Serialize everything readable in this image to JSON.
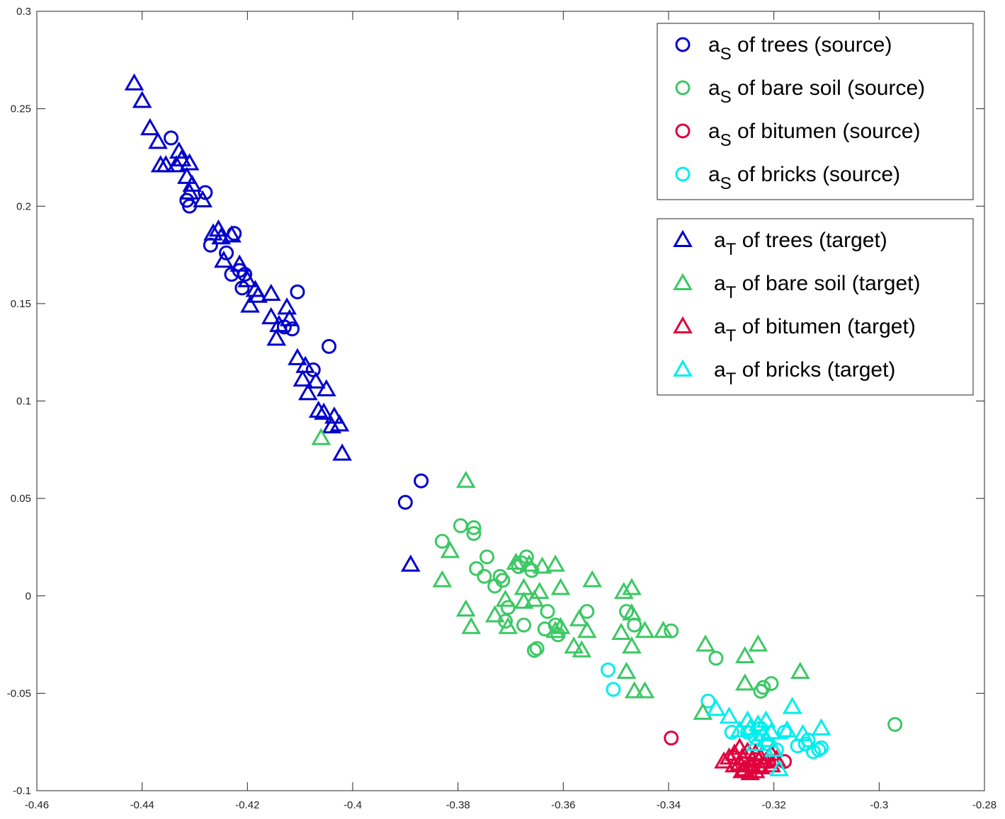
{
  "chart_data": {
    "type": "scatter",
    "title": "",
    "xlabel": "",
    "ylabel": "",
    "xlim": [
      -0.46,
      -0.28
    ],
    "ylim": [
      -0.1,
      0.3
    ],
    "xticks": [
      -0.46,
      -0.44,
      -0.42,
      -0.4,
      -0.38,
      -0.36,
      -0.34,
      -0.32,
      -0.3,
      -0.28
    ],
    "yticks": [
      -0.1,
      -0.05,
      0,
      0.05,
      0.1,
      0.15,
      0.2,
      0.25,
      0.3
    ],
    "xtick_labels": [
      "-0.46",
      "-0.44",
      "-0.42",
      "-0.4",
      "-0.38",
      "-0.36",
      "-0.34",
      "-0.32",
      "-0.3",
      "-0.28"
    ],
    "ytick_labels": [
      "-0.1",
      "-0.05",
      "0",
      "0.05",
      "0.1",
      "0.15",
      "0.2",
      "0.25",
      "0.3"
    ],
    "grid": false,
    "legends": [
      {
        "placement": "top-right",
        "entries": [
          {
            "base": "a",
            "sub": "S",
            "rest": " of trees (source)",
            "marker": "circle",
            "color": "#0000cc"
          },
          {
            "base": "a",
            "sub": "S",
            "rest": " of bare soil (source)",
            "marker": "circle",
            "color": "#3cc864"
          },
          {
            "base": "a",
            "sub": "S",
            "rest": " of bitumen (source)",
            "marker": "circle",
            "color": "#e0003c"
          },
          {
            "base": "a",
            "sub": "S",
            "rest": " of bricks (source)",
            "marker": "circle",
            "color": "#00eeee"
          }
        ]
      },
      {
        "placement": "right",
        "entries": [
          {
            "base": "a",
            "sub": "T",
            "rest": " of trees (target)",
            "marker": "triangle",
            "color": "#0000cc"
          },
          {
            "base": "a",
            "sub": "T",
            "rest": " of bare soil (target)",
            "marker": "triangle",
            "color": "#3cc864"
          },
          {
            "base": "a",
            "sub": "T",
            "rest": " of bitumen (target)",
            "marker": "triangle",
            "color": "#e0003c"
          },
          {
            "base": "a",
            "sub": "T",
            "rest": " of bricks (target)",
            "marker": "triangle",
            "color": "#00eeee"
          }
        ]
      }
    ],
    "series": [
      {
        "marker": "circle",
        "color": "#0000cc",
        "points": [
          [
            -0.4345,
            0.235
          ],
          [
            -0.428,
            0.207
          ],
          [
            -0.4315,
            0.203
          ],
          [
            -0.431,
            0.2
          ],
          [
            -0.427,
            0.18
          ],
          [
            -0.4225,
            0.186
          ],
          [
            -0.424,
            0.176
          ],
          [
            -0.4215,
            0.167
          ],
          [
            -0.421,
            0.158
          ],
          [
            -0.423,
            0.165
          ],
          [
            -0.4205,
            0.165
          ],
          [
            -0.4105,
            0.156
          ],
          [
            -0.413,
            0.138
          ],
          [
            -0.4115,
            0.137
          ],
          [
            -0.4045,
            0.128
          ],
          [
            -0.4075,
            0.116
          ],
          [
            -0.387,
            0.059
          ],
          [
            -0.39,
            0.048
          ]
        ]
      },
      {
        "marker": "circle",
        "color": "#3cc864",
        "points": [
          [
            -0.3795,
            0.036
          ],
          [
            -0.377,
            0.035
          ],
          [
            -0.377,
            0.032
          ],
          [
            -0.383,
            0.028
          ],
          [
            -0.3745,
            0.02
          ],
          [
            -0.367,
            0.02
          ],
          [
            -0.368,
            0.017
          ],
          [
            -0.3685,
            0.015
          ],
          [
            -0.366,
            0.013
          ],
          [
            -0.3765,
            0.014
          ],
          [
            -0.375,
            0.01
          ],
          [
            -0.372,
            0.01
          ],
          [
            -0.3715,
            0.008
          ],
          [
            -0.373,
            0.005
          ],
          [
            -0.3705,
            -0.006
          ],
          [
            -0.371,
            -0.013
          ],
          [
            -0.3675,
            -0.015
          ],
          [
            -0.363,
            -0.008
          ],
          [
            -0.3615,
            -0.015
          ],
          [
            -0.361,
            -0.02
          ],
          [
            -0.3635,
            -0.017
          ],
          [
            -0.365,
            -0.027
          ],
          [
            -0.3655,
            -0.028
          ],
          [
            -0.3555,
            -0.008
          ],
          [
            -0.348,
            -0.008
          ],
          [
            -0.3465,
            -0.015
          ],
          [
            -0.3395,
            -0.018
          ],
          [
            -0.331,
            -0.032
          ],
          [
            -0.322,
            -0.047
          ],
          [
            -0.3225,
            -0.049
          ],
          [
            -0.3205,
            -0.045
          ],
          [
            -0.297,
            -0.066
          ]
        ]
      },
      {
        "marker": "circle",
        "color": "#e0003c",
        "points": [
          [
            -0.3395,
            -0.073
          ],
          [
            -0.3275,
            -0.083
          ],
          [
            -0.326,
            -0.086
          ],
          [
            -0.3245,
            -0.088
          ],
          [
            -0.3225,
            -0.087
          ],
          [
            -0.321,
            -0.085
          ],
          [
            -0.3235,
            -0.084
          ],
          [
            -0.318,
            -0.085
          ]
        ]
      },
      {
        "marker": "circle",
        "color": "#00eeee",
        "points": [
          [
            -0.3515,
            -0.038
          ],
          [
            -0.3505,
            -0.048
          ],
          [
            -0.3325,
            -0.054
          ],
          [
            -0.328,
            -0.07
          ],
          [
            -0.325,
            -0.07
          ],
          [
            -0.3225,
            -0.068
          ],
          [
            -0.3235,
            -0.073
          ],
          [
            -0.321,
            -0.076
          ],
          [
            -0.3195,
            -0.079
          ],
          [
            -0.318,
            -0.07
          ],
          [
            -0.314,
            -0.076
          ],
          [
            -0.3135,
            -0.074
          ],
          [
            -0.3125,
            -0.08
          ],
          [
            -0.3115,
            -0.079
          ],
          [
            -0.311,
            -0.078
          ],
          [
            -0.3155,
            -0.077
          ]
        ]
      },
      {
        "marker": "triangle",
        "color": "#0000cc",
        "points": [
          [
            -0.4415,
            0.263
          ],
          [
            -0.44,
            0.254
          ],
          [
            -0.4385,
            0.24
          ],
          [
            -0.437,
            0.233
          ],
          [
            -0.4365,
            0.221
          ],
          [
            -0.4355,
            0.221
          ],
          [
            -0.433,
            0.228
          ],
          [
            -0.4325,
            0.224
          ],
          [
            -0.4335,
            0.221
          ],
          [
            -0.431,
            0.222
          ],
          [
            -0.4315,
            0.215
          ],
          [
            -0.4305,
            0.211
          ],
          [
            -0.431,
            0.207
          ],
          [
            -0.4285,
            0.203
          ],
          [
            -0.4255,
            0.188
          ],
          [
            -0.4265,
            0.186
          ],
          [
            -0.425,
            0.184
          ],
          [
            -0.423,
            0.185
          ],
          [
            -0.4245,
            0.172
          ],
          [
            -0.4215,
            0.17
          ],
          [
            -0.42,
            0.162
          ],
          [
            -0.4185,
            0.157
          ],
          [
            -0.418,
            0.154
          ],
          [
            -0.4195,
            0.149
          ],
          [
            -0.4155,
            0.155
          ],
          [
            -0.4155,
            0.143
          ],
          [
            -0.414,
            0.139
          ],
          [
            -0.4125,
            0.148
          ],
          [
            -0.412,
            0.142
          ],
          [
            -0.4145,
            0.132
          ],
          [
            -0.4105,
            0.122
          ],
          [
            -0.409,
            0.118
          ],
          [
            -0.4095,
            0.111
          ],
          [
            -0.407,
            0.11
          ],
          [
            -0.405,
            0.106
          ],
          [
            -0.4085,
            0.104
          ],
          [
            -0.4065,
            0.095
          ],
          [
            -0.4055,
            0.094
          ],
          [
            -0.4035,
            0.092
          ],
          [
            -0.404,
            0.087
          ],
          [
            -0.4025,
            0.088
          ],
          [
            -0.402,
            0.073
          ],
          [
            -0.389,
            0.016
          ]
        ]
      },
      {
        "marker": "triangle",
        "color": "#3cc864",
        "points": [
          [
            -0.406,
            0.081
          ],
          [
            -0.3785,
            0.059
          ],
          [
            -0.3815,
            0.023
          ],
          [
            -0.383,
            0.008
          ],
          [
            -0.369,
            0.017
          ],
          [
            -0.3665,
            0.016
          ],
          [
            -0.364,
            0.015
          ],
          [
            -0.3615,
            0.016
          ],
          [
            -0.3675,
            0.004
          ],
          [
            -0.3645,
            0.002
          ],
          [
            -0.3605,
            0.004
          ],
          [
            -0.3655,
            -0.002
          ],
          [
            -0.371,
            -0.002
          ],
          [
            -0.3785,
            -0.007
          ],
          [
            -0.3775,
            -0.016
          ],
          [
            -0.373,
            -0.01
          ],
          [
            -0.3675,
            -0.003
          ],
          [
            -0.3705,
            -0.016
          ],
          [
            -0.3605,
            -0.016
          ],
          [
            -0.3615,
            -0.018
          ],
          [
            -0.357,
            -0.012
          ],
          [
            -0.3545,
            0.008
          ],
          [
            -0.3485,
            0.002
          ],
          [
            -0.347,
            0.004
          ],
          [
            -0.347,
            -0.009
          ],
          [
            -0.3555,
            -0.018
          ],
          [
            -0.358,
            -0.026
          ],
          [
            -0.3565,
            -0.028
          ],
          [
            -0.349,
            -0.019
          ],
          [
            -0.347,
            -0.026
          ],
          [
            -0.3445,
            -0.018
          ],
          [
            -0.341,
            -0.018
          ],
          [
            -0.348,
            -0.039
          ],
          [
            -0.3465,
            -0.049
          ],
          [
            -0.3445,
            -0.049
          ],
          [
            -0.333,
            -0.025
          ],
          [
            -0.3255,
            -0.031
          ],
          [
            -0.323,
            -0.025
          ],
          [
            -0.3255,
            -0.045
          ],
          [
            -0.315,
            -0.039
          ],
          [
            -0.3335,
            -0.06
          ]
        ]
      },
      {
        "marker": "triangle",
        "color": "#e0003c",
        "points": [
          [
            -0.3285,
            -0.083
          ],
          [
            -0.3275,
            -0.081
          ],
          [
            -0.3265,
            -0.078
          ],
          [
            -0.326,
            -0.083
          ],
          [
            -0.325,
            -0.08
          ],
          [
            -0.3245,
            -0.087
          ],
          [
            -0.3235,
            -0.081
          ],
          [
            -0.3225,
            -0.083
          ],
          [
            -0.3215,
            -0.085
          ],
          [
            -0.3205,
            -0.081
          ],
          [
            -0.3195,
            -0.084
          ],
          [
            -0.3255,
            -0.089
          ],
          [
            -0.3265,
            -0.086
          ],
          [
            -0.3275,
            -0.087
          ],
          [
            -0.3245,
            -0.091
          ],
          [
            -0.3225,
            -0.088
          ],
          [
            -0.3205,
            -0.087
          ],
          [
            -0.3295,
            -0.085
          ],
          [
            -0.324,
            -0.084
          ],
          [
            -0.3235,
            -0.09
          ],
          [
            -0.326,
            -0.09
          ]
        ]
      },
      {
        "marker": "triangle",
        "color": "#00eeee",
        "points": [
          [
            -0.331,
            -0.058
          ],
          [
            -0.3285,
            -0.062
          ],
          [
            -0.3265,
            -0.069
          ],
          [
            -0.3245,
            -0.068
          ],
          [
            -0.325,
            -0.064
          ],
          [
            -0.323,
            -0.066
          ],
          [
            -0.322,
            -0.071
          ],
          [
            -0.3215,
            -0.064
          ],
          [
            -0.3205,
            -0.07
          ],
          [
            -0.3215,
            -0.074
          ],
          [
            -0.3235,
            -0.076
          ],
          [
            -0.32,
            -0.079
          ],
          [
            -0.3175,
            -0.069
          ],
          [
            -0.3165,
            -0.057
          ],
          [
            -0.3145,
            -0.071
          ],
          [
            -0.311,
            -0.068
          ],
          [
            -0.319,
            -0.089
          ]
        ]
      }
    ]
  }
}
